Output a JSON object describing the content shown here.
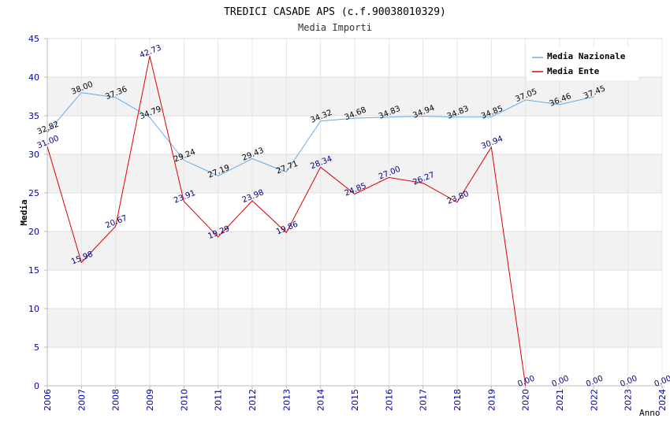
{
  "chart_data": {
    "type": "line",
    "title": "TREDICI CASADE APS (c.f.90038010329)",
    "subtitle": "Media Importi",
    "xlabel": "Anno",
    "ylabel": "Media",
    "ylim": [
      0,
      45
    ],
    "yticks": [
      "0",
      "5",
      "10",
      "15",
      "20",
      "25",
      "30",
      "35",
      "40",
      "45"
    ],
    "x": [
      "2006",
      "2007",
      "2008",
      "2009",
      "2010",
      "2011",
      "2012",
      "2013",
      "2014",
      "2015",
      "2016",
      "2017",
      "2018",
      "2019",
      "2020",
      "2021",
      "2022",
      "2023",
      "2024"
    ],
    "series": [
      {
        "name": "Media Nazionale",
        "color": "#66aaee",
        "label_color": "#000000",
        "values": [
          32.82,
          38.0,
          37.36,
          34.79,
          29.24,
          27.19,
          29.43,
          27.71,
          34.32,
          34.68,
          34.83,
          34.94,
          34.83,
          34.85,
          37.05,
          36.46,
          37.45,
          null,
          null
        ],
        "labels": [
          "32.82",
          "38.00",
          "37.36",
          "34.79",
          "29.24",
          "27.19",
          "29.43",
          "27.71",
          "34.32",
          "34.68",
          "34.83",
          "34.94",
          "34.83",
          "34.85",
          "37.05",
          "36.46",
          "37.45",
          null,
          null
        ]
      },
      {
        "name": "Media Ente",
        "color": "#dd0000",
        "label_color": "#000080",
        "values": [
          31.0,
          15.98,
          20.67,
          42.73,
          23.91,
          19.29,
          23.98,
          19.86,
          28.34,
          24.85,
          27.0,
          26.27,
          23.8,
          30.94,
          0.0,
          0.0,
          0.0,
          0.0,
          0.0
        ],
        "labels": [
          "31.00",
          "15.98",
          "20.67",
          "42.73",
          "23.91",
          "19.29",
          "23.98",
          "19.86",
          "28.34",
          "24.85",
          "27.00",
          "26.27",
          "23.80",
          "30.94",
          "0.00",
          "0.00",
          "0.00",
          "0.00",
          "0.00"
        ],
        "line_values": [
          31.0,
          15.98,
          20.67,
          42.73,
          23.91,
          19.29,
          23.98,
          19.86,
          28.34,
          24.85,
          27.0,
          26.27,
          23.8,
          30.94,
          0.0,
          null,
          null,
          null,
          null
        ]
      }
    ],
    "legend_position": "top-right",
    "grid": true
  }
}
